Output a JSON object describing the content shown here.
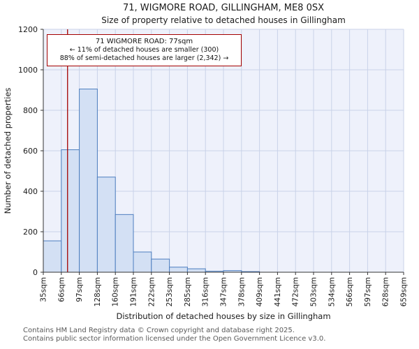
{
  "chart_data": {
    "type": "bar",
    "title": "71, WIGMORE ROAD, GILLINGHAM, ME8 0SX",
    "subtitle": "Size of property relative to detached houses in Gillingham",
    "xlabel": "Distribution of detached houses by size in Gillingham",
    "ylabel": "Number of detached properties",
    "bin_edges": [
      35,
      66,
      97,
      128,
      160,
      191,
      222,
      253,
      285,
      316,
      347,
      378,
      409,
      441,
      472,
      503,
      534,
      566,
      597,
      628,
      659
    ],
    "x_tick_labels": [
      "35sqm",
      "66sqm",
      "97sqm",
      "128sqm",
      "160sqm",
      "191sqm",
      "222sqm",
      "253sqm",
      "285sqm",
      "316sqm",
      "347sqm",
      "378sqm",
      "409sqm",
      "441sqm",
      "472sqm",
      "503sqm",
      "534sqm",
      "566sqm",
      "597sqm",
      "628sqm",
      "659sqm"
    ],
    "values": [
      155,
      605,
      905,
      470,
      285,
      100,
      65,
      25,
      17,
      5,
      8,
      3,
      0,
      0,
      0,
      0,
      0,
      0,
      0,
      0
    ],
    "ylim": [
      0,
      1200
    ],
    "y_ticks": [
      0,
      200,
      400,
      600,
      800,
      1000,
      1200
    ],
    "x_range": [
      35,
      659
    ],
    "grid": true,
    "marker": {
      "label": "71 WIGMORE ROAD",
      "value": 77,
      "unit": "sqm"
    },
    "colors": {
      "bar_fill": "#d3e0f4",
      "bar_border": "#4d7ebf",
      "grid": "#c9d2e8",
      "plot_bg": "#eef1fb",
      "marker": "#a40000",
      "axis": "#333333",
      "tick_text": "#1a1a1a"
    }
  },
  "annotation": {
    "line1": "71 WIGMORE ROAD: 77sqm",
    "line2": "← 11% of detached houses are smaller (300)",
    "line3": "88% of semi-detached houses are larger (2,342) →"
  },
  "footer": {
    "line1": "Contains HM Land Registry data © Crown copyright and database right 2025.",
    "line2": "Contains public sector information licensed under the Open Government Licence v3.0."
  }
}
